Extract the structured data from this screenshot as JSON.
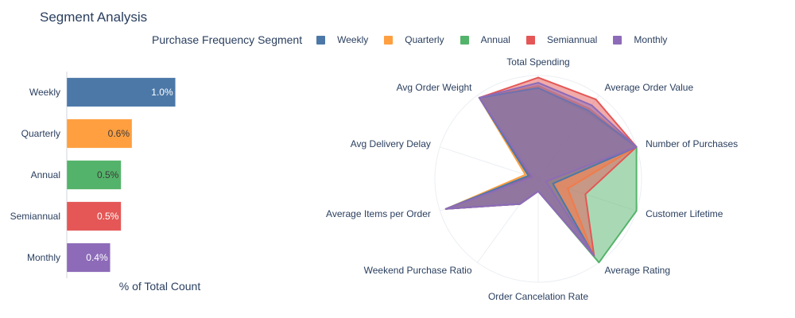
{
  "title": "Segment Analysis",
  "legend_title": "Purchase Frequency Segment",
  "colors": {
    "Weekly": "#4c78a8",
    "Quarterly": "#ff9f40",
    "Annual": "#54b36a",
    "Semiannual": "#e45756",
    "Monthly": "#8d6bb8"
  },
  "chart_data": [
    {
      "type": "bar",
      "orientation": "horizontal",
      "categories": [
        "Weekly",
        "Quarterly",
        "Annual",
        "Semiannual",
        "Monthly"
      ],
      "values": [
        1.0,
        0.6,
        0.5,
        0.5,
        0.4
      ],
      "value_labels": [
        "1.0%",
        "0.6%",
        "0.5%",
        "0.5%",
        "0.4%"
      ],
      "xlabel": "% of Total Count",
      "xlim": [
        0,
        1.8
      ]
    },
    {
      "type": "radar",
      "axes": [
        "Total Spending",
        "Average Order Value",
        "Number of Purchases",
        "Customer Lifetime",
        "Average Rating",
        "Order Cancelation Rate",
        "Weekend Purchase Ratio",
        "Average Items per Order",
        "Avg Delivery Delay",
        "Avg Order Weight"
      ],
      "rlim": [
        0,
        1
      ],
      "series": [
        {
          "name": "Weekly",
          "values": [
            0.88,
            0.82,
            1.0,
            0.15,
            0.91,
            0.12,
            0.3,
            0.94,
            0.1,
            0.97
          ]
        },
        {
          "name": "Quarterly",
          "values": [
            0.9,
            0.84,
            1.0,
            0.3,
            0.91,
            0.12,
            0.3,
            0.94,
            0.13,
            0.97
          ]
        },
        {
          "name": "Annual",
          "values": [
            0.88,
            0.8,
            1.0,
            1.0,
            1.0,
            0.12,
            0.3,
            0.94,
            0.1,
            0.97
          ]
        },
        {
          "name": "Semiannual",
          "values": [
            0.98,
            0.95,
            1.0,
            0.48,
            0.92,
            0.12,
            0.3,
            0.94,
            0.08,
            0.97
          ]
        },
        {
          "name": "Monthly",
          "values": [
            0.93,
            0.88,
            1.0,
            0.08,
            0.92,
            0.12,
            0.3,
            0.94,
            0.06,
            0.97
          ]
        }
      ]
    }
  ]
}
